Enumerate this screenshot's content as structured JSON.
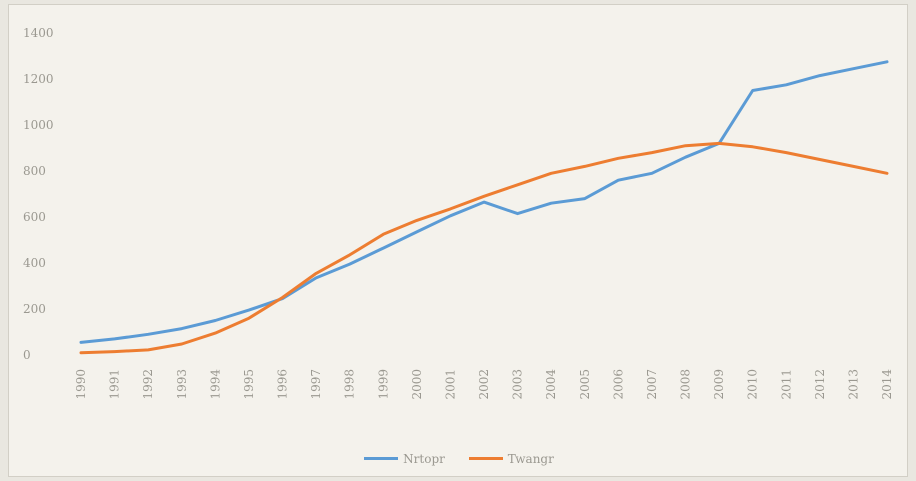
{
  "chart_data": {
    "type": "line",
    "title": "",
    "xlabel": "",
    "ylabel": "",
    "ylim": [
      0,
      1400
    ],
    "y_ticks": [
      "0",
      "200",
      "400",
      "600",
      "800",
      "1000",
      "1200",
      "1400"
    ],
    "categories": [
      "1990",
      "1991",
      "1992",
      "1993",
      "1994",
      "1995",
      "1996",
      "1997",
      "1998",
      "1999",
      "2000",
      "2001",
      "2002",
      "2003",
      "2004",
      "2005",
      "2006",
      "2007",
      "2008",
      "2009",
      "2010",
      "2011",
      "2012",
      "2013",
      "2014"
    ],
    "grid": false,
    "legend_position": "bottom",
    "series": [
      {
        "name": "Nrtopr",
        "color": "#5b9bd5",
        "values": [
          55,
          70,
          90,
          115,
          150,
          195,
          245,
          335,
          395,
          465,
          535,
          605,
          665,
          615,
          660,
          680,
          760,
          790,
          860,
          920,
          1150,
          1175,
          1215,
          1245,
          1275
        ]
      },
      {
        "name": "Twangr",
        "color": "#ed7d31",
        "values": [
          10,
          15,
          22,
          48,
          95,
          160,
          250,
          355,
          435,
          525,
          585,
          635,
          690,
          740,
          790,
          820,
          855,
          880,
          910,
          920,
          905,
          880,
          850,
          820,
          790
        ]
      }
    ]
  }
}
